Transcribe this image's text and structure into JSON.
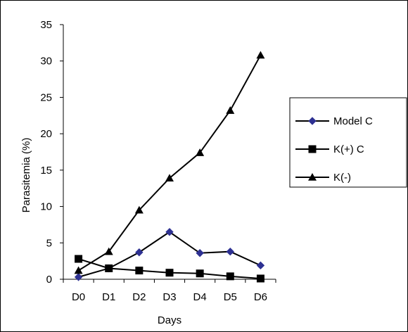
{
  "chart_data": {
    "type": "line",
    "categories": [
      "D0",
      "D1",
      "D2",
      "D3",
      "D4",
      "D5",
      "D6"
    ],
    "xlabel": "Days",
    "ylabel": "Parasitemia (%)",
    "ylim": [
      0,
      35
    ],
    "yticks": [
      0,
      5,
      10,
      15,
      20,
      25,
      30,
      35
    ],
    "grid": false,
    "legend_position": "right",
    "series": [
      {
        "name": "Model C",
        "marker": "diamond",
        "color": "#2e3192",
        "values": [
          0.3,
          1.5,
          3.7,
          6.5,
          3.6,
          3.8,
          1.9
        ]
      },
      {
        "name": "K(+) C",
        "marker": "square",
        "color": "#000000",
        "values": [
          2.8,
          1.5,
          1.2,
          0.9,
          0.8,
          0.4,
          0.1
        ]
      },
      {
        "name": "K(-)",
        "marker": "triangle",
        "color": "#000000",
        "values": [
          1.2,
          3.8,
          9.5,
          13.9,
          17.4,
          23.2,
          30.8
        ]
      }
    ]
  }
}
